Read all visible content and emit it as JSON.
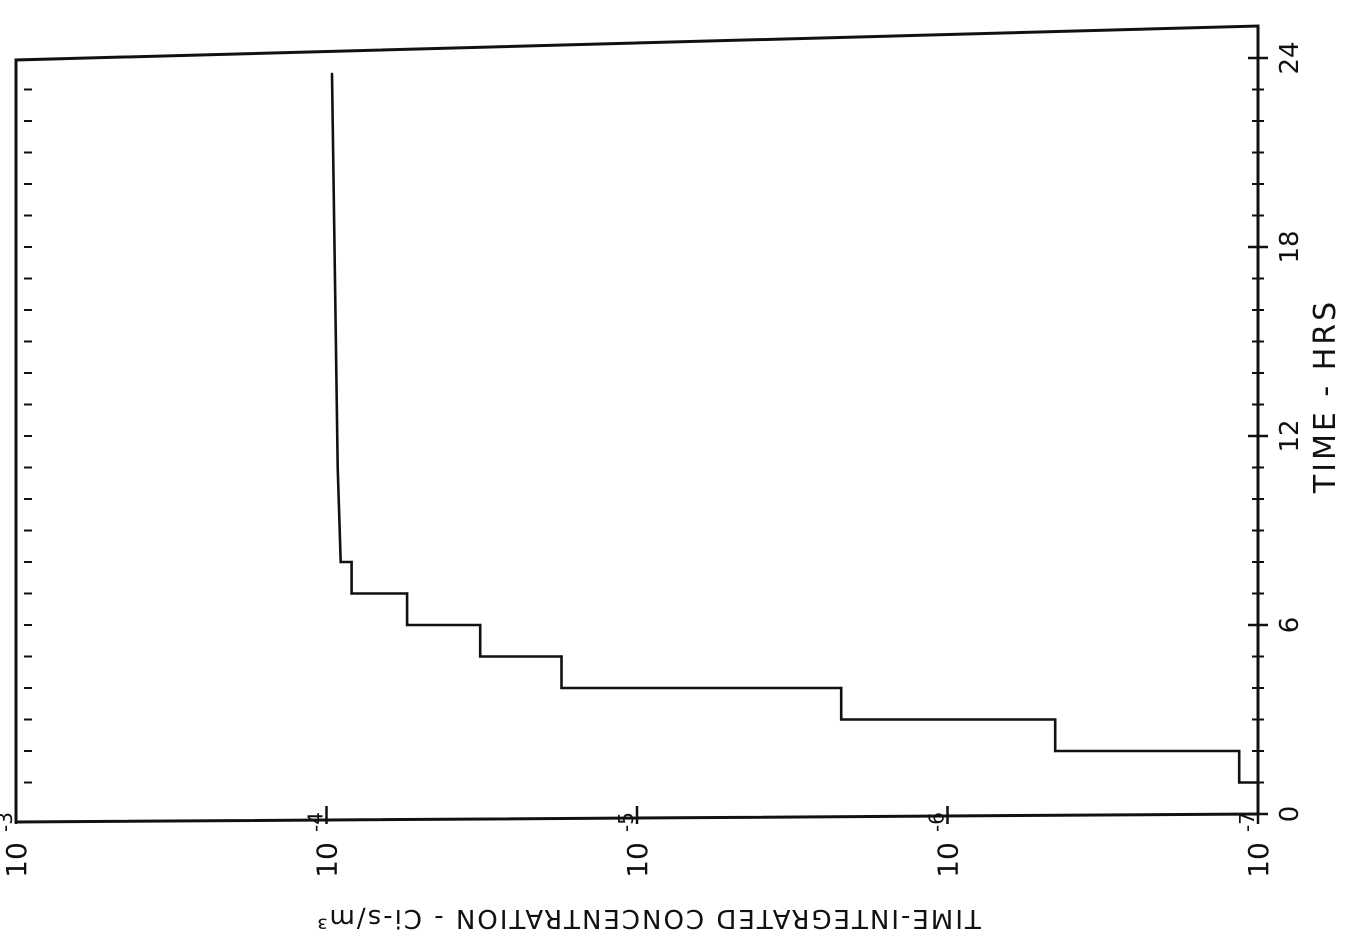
{
  "chart_data": {
    "type": "line",
    "step": true,
    "orientation": "rotated-90",
    "xlabel": "TIME - HRS",
    "ylabel": "TIME-INTEGRATED CONCENTRATION - Ci-s/m³",
    "x_tick_labels": [
      "0",
      "6",
      "12",
      "18",
      "24"
    ],
    "y_tick_labels": [
      {
        "base": "10",
        "exp": "-3"
      },
      {
        "base": "10",
        "exp": "-4"
      },
      {
        "base": "10",
        "exp": "-5"
      },
      {
        "base": "10",
        "exp": "-6"
      },
      {
        "base": "10",
        "exp": "-7"
      }
    ],
    "xlim": [
      0,
      24
    ],
    "ylim": [
      1e-07,
      0.001
    ],
    "yscale": "log",
    "series": [
      {
        "points": [
          {
            "t": 1.0,
            "c": 1e-07
          },
          {
            "t": 1.0,
            "c": 1.15e-07
          },
          {
            "t": 2.0,
            "c": 1.15e-07
          },
          {
            "t": 2.0,
            "c": 4.5e-07
          },
          {
            "t": 3.0,
            "c": 4.5e-07
          },
          {
            "t": 3.0,
            "c": 2.2e-06
          },
          {
            "t": 4.0,
            "c": 2.2e-06
          },
          {
            "t": 4.0,
            "c": 1.75e-05
          },
          {
            "t": 5.0,
            "c": 1.75e-05
          },
          {
            "t": 5.0,
            "c": 3.2e-05
          },
          {
            "t": 6.0,
            "c": 3.2e-05
          },
          {
            "t": 6.0,
            "c": 5.5e-05
          },
          {
            "t": 7.0,
            "c": 5.5e-05
          },
          {
            "t": 7.0,
            "c": 8.3e-05
          },
          {
            "t": 8.0,
            "c": 8.3e-05
          },
          {
            "t": 8.0,
            "c": 9e-05
          },
          {
            "t": 11.0,
            "c": 9.2e-05
          },
          {
            "t": 23.5,
            "c": 9.6e-05
          }
        ]
      }
    ]
  }
}
